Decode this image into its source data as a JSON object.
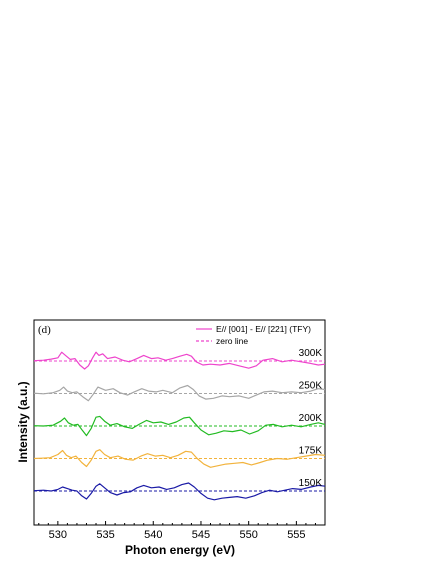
{
  "chart_data": {
    "type": "line",
    "panel_label": "(d)",
    "xlabel": "Photon energy (eV)",
    "ylabel": "Intensity (a.u.)",
    "xlim": [
      527.5,
      558
    ],
    "x_ticks": [
      530,
      535,
      540,
      545,
      550,
      555
    ],
    "x_tick_labels": [
      "530",
      "535",
      "540",
      "545",
      "550",
      "555"
    ],
    "y_tick_labels_shown": false,
    "grid": false,
    "legend_position": "top-right",
    "legend": [
      {
        "label": "E// [001] - E// [221] (TFY)",
        "style": "solid",
        "color": "#ee44cc"
      },
      {
        "label": "zero line",
        "style": "dashed",
        "color": "#ee44cc"
      }
    ],
    "series": [
      {
        "name": "300K",
        "color": "#ee44cc",
        "offset": 4,
        "points": [
          [
            527.5,
            0.02
          ],
          [
            528.5,
            0.05
          ],
          [
            529.3,
            0.12
          ],
          [
            530,
            0.2
          ],
          [
            530.4,
            0.55
          ],
          [
            530.8,
            0.35
          ],
          [
            531.3,
            0.1
          ],
          [
            531.8,
            0.15
          ],
          [
            532.3,
            -0.25
          ],
          [
            532.8,
            -0.5
          ],
          [
            533.2,
            -0.3
          ],
          [
            533.6,
            0.15
          ],
          [
            534,
            0.55
          ],
          [
            534.3,
            0.35
          ],
          [
            534.7,
            0.45
          ],
          [
            535.2,
            0.15
          ],
          [
            536,
            0.25
          ],
          [
            536.8,
            0.05
          ],
          [
            537.5,
            -0.05
          ],
          [
            538.3,
            0.15
          ],
          [
            539,
            0.35
          ],
          [
            539.8,
            0.15
          ],
          [
            540.5,
            0.2
          ],
          [
            541.3,
            0.05
          ],
          [
            542,
            0.15
          ],
          [
            542.8,
            0.3
          ],
          [
            543.5,
            0.42
          ],
          [
            544,
            0.3
          ],
          [
            544.5,
            -0.05
          ],
          [
            545.2,
            -0.25
          ],
          [
            546,
            -0.2
          ],
          [
            547,
            -0.25
          ],
          [
            548,
            -0.15
          ],
          [
            549,
            -0.3
          ],
          [
            550,
            -0.45
          ],
          [
            550.8,
            -0.3
          ],
          [
            551.5,
            0.05
          ],
          [
            552.5,
            0.15
          ],
          [
            553.5,
            -0.05
          ],
          [
            554.5,
            0.05
          ],
          [
            555.5,
            -0.05
          ],
          [
            556.5,
            -0.15
          ],
          [
            557.3,
            -0.25
          ],
          [
            558,
            -0.2
          ]
        ]
      },
      {
        "name": "250K",
        "color": "#a6a6a6",
        "offset": 3,
        "points": [
          [
            527.5,
            0.02
          ],
          [
            528.5,
            -0.02
          ],
          [
            529.5,
            0.05
          ],
          [
            530.2,
            0.2
          ],
          [
            530.6,
            0.4
          ],
          [
            531,
            0.15
          ],
          [
            531.5,
            0.05
          ],
          [
            532,
            0.1
          ],
          [
            532.6,
            -0.2
          ],
          [
            533.2,
            -0.45
          ],
          [
            533.7,
            -0.05
          ],
          [
            534.2,
            0.4
          ],
          [
            534.6,
            0.3
          ],
          [
            535,
            0.2
          ],
          [
            535.8,
            0.3
          ],
          [
            536.5,
            0.05
          ],
          [
            537.3,
            -0.1
          ],
          [
            538,
            0.1
          ],
          [
            538.8,
            0.3
          ],
          [
            539.5,
            0.15
          ],
          [
            540.3,
            0.1
          ],
          [
            541,
            0.2
          ],
          [
            542,
            0.05
          ],
          [
            542.8,
            0.35
          ],
          [
            543.6,
            0.5
          ],
          [
            544.2,
            0.25
          ],
          [
            544.8,
            -0.15
          ],
          [
            545.5,
            -0.35
          ],
          [
            546.3,
            -0.3
          ],
          [
            547.2,
            -0.15
          ],
          [
            548,
            -0.2
          ],
          [
            549,
            -0.15
          ],
          [
            550,
            -0.3
          ],
          [
            550.8,
            -0.1
          ],
          [
            551.6,
            0.1
          ],
          [
            552.5,
            0.15
          ],
          [
            553.5,
            0.05
          ],
          [
            554.5,
            0.1
          ],
          [
            555.5,
            0.05
          ],
          [
            556.5,
            0.15
          ],
          [
            557.3,
            0.3
          ],
          [
            558,
            0.25
          ]
        ]
      },
      {
        "name": "200K",
        "color": "#22bb22",
        "offset": 2,
        "points": [
          [
            527.5,
            0.02
          ],
          [
            528.5,
            0.0
          ],
          [
            529.5,
            0.05
          ],
          [
            530.3,
            0.3
          ],
          [
            530.7,
            0.5
          ],
          [
            531.1,
            0.2
          ],
          [
            531.6,
            0.05
          ],
          [
            532.1,
            0.1
          ],
          [
            532.6,
            -0.3
          ],
          [
            533,
            -0.6
          ],
          [
            533.5,
            -0.15
          ],
          [
            534,
            0.55
          ],
          [
            534.4,
            0.6
          ],
          [
            534.9,
            0.3
          ],
          [
            535.5,
            0.05
          ],
          [
            536.2,
            0.15
          ],
          [
            537,
            -0.05
          ],
          [
            537.8,
            -0.15
          ],
          [
            538.5,
            0.1
          ],
          [
            539.3,
            0.35
          ],
          [
            540,
            0.2
          ],
          [
            540.8,
            0.25
          ],
          [
            541.6,
            0.1
          ],
          [
            542.4,
            0.25
          ],
          [
            543.2,
            0.5
          ],
          [
            543.8,
            0.55
          ],
          [
            544.3,
            0.2
          ],
          [
            545,
            -0.25
          ],
          [
            545.8,
            -0.55
          ],
          [
            546.6,
            -0.45
          ],
          [
            547.4,
            -0.3
          ],
          [
            548.3,
            -0.35
          ],
          [
            549.2,
            -0.25
          ],
          [
            550.1,
            -0.5
          ],
          [
            551,
            -0.3
          ],
          [
            551.8,
            0.05
          ],
          [
            552.6,
            0.1
          ],
          [
            553.5,
            -0.05
          ],
          [
            554.5,
            0.05
          ],
          [
            555.5,
            -0.05
          ],
          [
            556.5,
            0.1
          ],
          [
            557.3,
            0.2
          ],
          [
            558,
            0.1
          ]
        ]
      },
      {
        "name": "175K",
        "color": "#f2b33d",
        "offset": 1,
        "points": [
          [
            527.5,
            0.0
          ],
          [
            528.3,
            0.02
          ],
          [
            529.2,
            0.05
          ],
          [
            530,
            0.25
          ],
          [
            530.5,
            0.5
          ],
          [
            530.9,
            0.2
          ],
          [
            531.4,
            0.05
          ],
          [
            531.9,
            0.15
          ],
          [
            532.5,
            -0.25
          ],
          [
            533,
            -0.5
          ],
          [
            533.5,
            -0.1
          ],
          [
            534,
            0.45
          ],
          [
            534.4,
            0.55
          ],
          [
            534.9,
            0.25
          ],
          [
            535.5,
            0.05
          ],
          [
            536.3,
            0.15
          ],
          [
            537.1,
            -0.05
          ],
          [
            537.9,
            -0.1
          ],
          [
            538.7,
            0.15
          ],
          [
            539.4,
            0.3
          ],
          [
            540.2,
            0.15
          ],
          [
            541,
            0.2
          ],
          [
            541.8,
            0.05
          ],
          [
            542.6,
            0.2
          ],
          [
            543.4,
            0.45
          ],
          [
            544,
            0.4
          ],
          [
            544.6,
            0.0
          ],
          [
            545.3,
            -0.35
          ],
          [
            546,
            -0.55
          ],
          [
            546.8,
            -0.45
          ],
          [
            547.6,
            -0.35
          ],
          [
            548.5,
            -0.3
          ],
          [
            549.4,
            -0.25
          ],
          [
            550.3,
            -0.4
          ],
          [
            551.2,
            -0.25
          ],
          [
            552,
            -0.1
          ],
          [
            553,
            0.0
          ],
          [
            554,
            -0.05
          ],
          [
            555,
            0.05
          ],
          [
            556,
            0.15
          ],
          [
            557,
            0.25
          ],
          [
            558,
            0.2
          ]
        ]
      },
      {
        "name": "150K",
        "color": "#1a1aa6",
        "offset": 0,
        "points": [
          [
            527.5,
            0.02
          ],
          [
            528.5,
            0.05
          ],
          [
            529.3,
            0.0
          ],
          [
            530,
            0.1
          ],
          [
            530.5,
            0.25
          ],
          [
            531,
            0.15
          ],
          [
            531.5,
            0.05
          ],
          [
            532,
            0.0
          ],
          [
            532.5,
            -0.3
          ],
          [
            533,
            -0.5
          ],
          [
            533.5,
            -0.15
          ],
          [
            534,
            0.3
          ],
          [
            534.4,
            0.45
          ],
          [
            534.9,
            0.2
          ],
          [
            535.5,
            -0.1
          ],
          [
            536.2,
            -0.25
          ],
          [
            536.9,
            -0.1
          ],
          [
            537.6,
            -0.05
          ],
          [
            538.3,
            0.2
          ],
          [
            539,
            0.35
          ],
          [
            539.8,
            0.2
          ],
          [
            540.6,
            0.25
          ],
          [
            541.4,
            0.1
          ],
          [
            542.2,
            0.2
          ],
          [
            543,
            0.4
          ],
          [
            543.7,
            0.5
          ],
          [
            544.3,
            0.25
          ],
          [
            545,
            -0.15
          ],
          [
            545.7,
            -0.45
          ],
          [
            546.4,
            -0.55
          ],
          [
            547.2,
            -0.45
          ],
          [
            548,
            -0.4
          ],
          [
            548.8,
            -0.35
          ],
          [
            549.7,
            -0.45
          ],
          [
            550.6,
            -0.3
          ],
          [
            551.4,
            -0.1
          ],
          [
            552.2,
            0.05
          ],
          [
            553,
            -0.05
          ],
          [
            553.8,
            0.05
          ],
          [
            554.6,
            0.15
          ],
          [
            555.5,
            0.1
          ],
          [
            556.5,
            0.25
          ],
          [
            557.3,
            0.35
          ],
          [
            558,
            0.3
          ]
        ]
      }
    ]
  }
}
